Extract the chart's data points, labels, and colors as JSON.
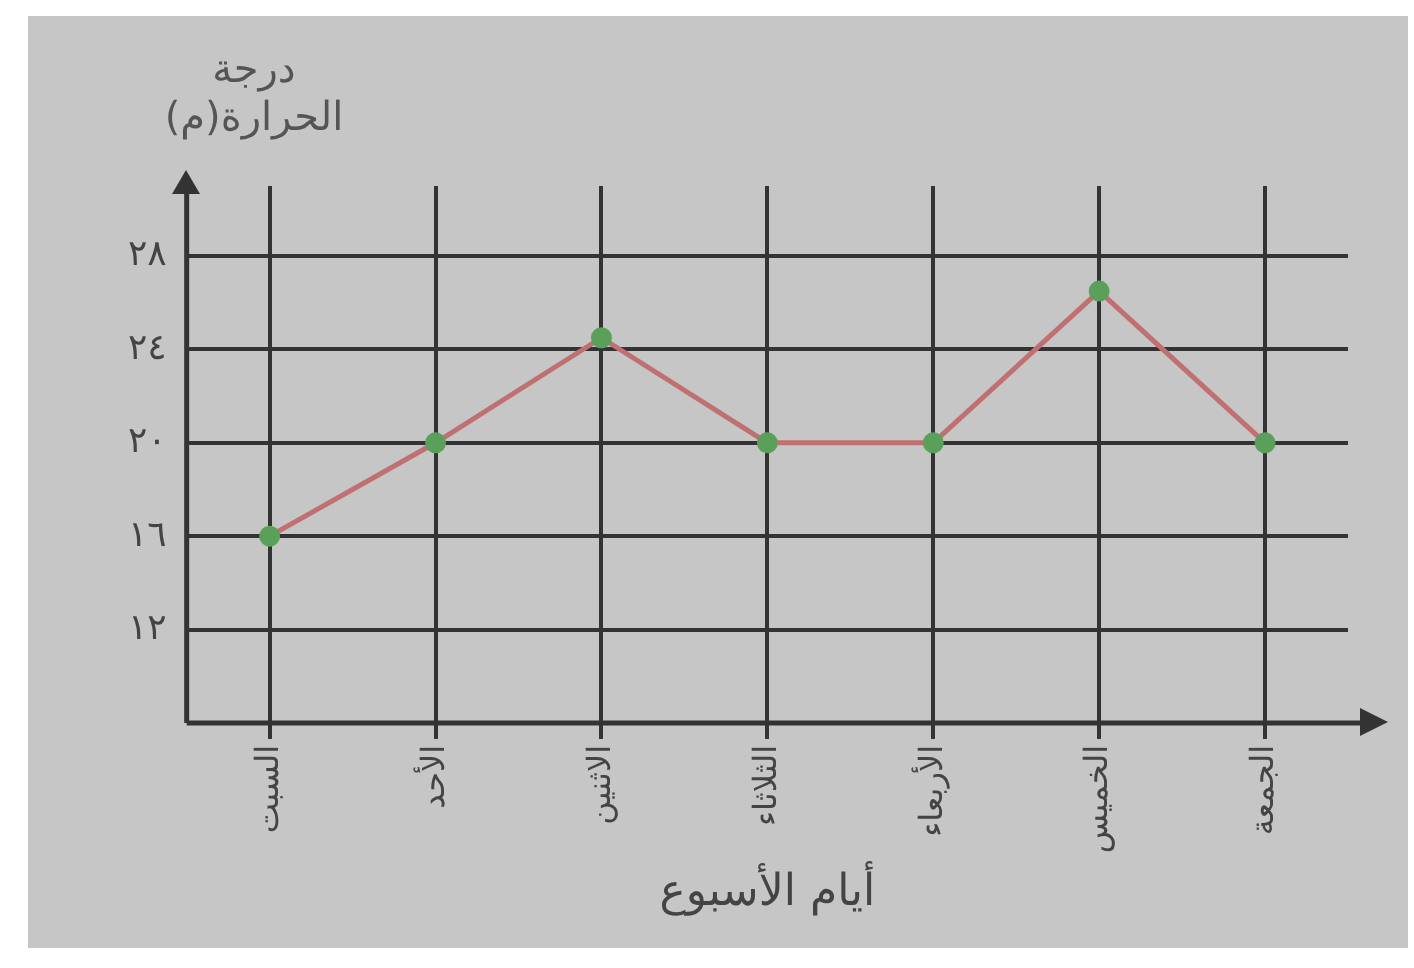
{
  "chart_data": {
    "type": "line",
    "ylabel": "درجة الحرارة(م)",
    "xlabel": "أيام الأسبوع",
    "categories": [
      "السبت",
      "الأحد",
      "الاثنين",
      "الثلاثاء",
      "الأربعاء",
      "الخميس",
      "الجمعة"
    ],
    "series": [
      {
        "color": "#c07070",
        "values": [
          16,
          20,
          24.5,
          20,
          20,
          26.5,
          20
        ]
      }
    ],
    "ylim": [
      8,
      31
    ],
    "yticks": [
      {
        "value": 12,
        "label": "١٢"
      },
      {
        "value": 16,
        "label": "١٦"
      },
      {
        "value": 20,
        "label": "٢٠"
      },
      {
        "value": 24,
        "label": "٢٤"
      },
      {
        "value": 28,
        "label": "٢٨"
      }
    ],
    "grid": true,
    "legend": false,
    "marker": "circle",
    "line_style": "solid"
  }
}
